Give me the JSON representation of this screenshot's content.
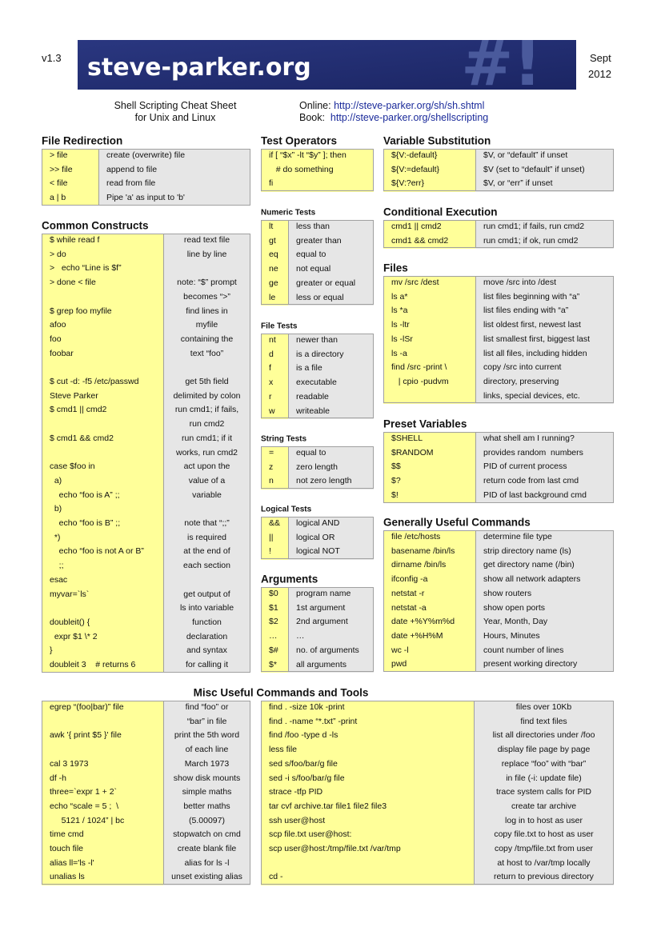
{
  "header": {
    "version": "v1.3",
    "logo": "steve-parker.org",
    "logo_mark": "#!",
    "date": [
      "Sept",
      "2012"
    ]
  },
  "intro": {
    "title": [
      "Shell Scripting Cheat Sheet",
      "for Unix and Linux"
    ],
    "online_label": "Online:",
    "online_url": "http://steve-parker.org/sh/sh.shtml",
    "book_label": "Book:",
    "book_url": "http://steve-parker.org/shellscripting"
  },
  "misc_title": "Misc Useful Commands and Tools",
  "sections": [
    {
      "title": "File Redirection",
      "groups": [
        [
          [
            "> file",
            "create (overwrite) file"
          ],
          [
            ">> file",
            "append to file"
          ],
          [
            "< file",
            "read from file"
          ],
          [
            "a | b",
            "Pipe 'a' as input to 'b'"
          ]
        ]
      ]
    },
    {
      "title": "Common Constructs",
      "groups": [
        [
          [
            "$ while read f",
            "read text file"
          ],
          [
            "> do",
            "line by line"
          ],
          [
            ">   echo “Line is $f”",
            null
          ],
          [
            "> done < file",
            "note: “$” prompt"
          ],
          [
            null,
            "becomes “>”"
          ]
        ],
        [
          [
            "$ grep foo myfile",
            "find lines in"
          ],
          [
            "afoo",
            "myfile"
          ],
          [
            "foo",
            "containing the"
          ],
          [
            "foobar",
            "text “foo”"
          ],
          [
            null,
            null
          ]
        ],
        [
          [
            "$ cut -d: -f5 /etc/passwd",
            "get 5th field"
          ],
          [
            "Steve Parker",
            "delimited by colon"
          ]
        ],
        [
          [
            "$ cmd1 || cmd2",
            "run cmd1; if fails,"
          ],
          [
            null,
            "run cmd2"
          ]
        ],
        [
          [
            "$ cmd1 && cmd2",
            "run cmd1; if it"
          ],
          [
            null,
            "works, run cmd2"
          ]
        ],
        [
          [
            "case $foo in",
            "act upon the"
          ],
          [
            "  a)",
            "value of a"
          ],
          [
            "    echo “foo is A” ;;",
            "variable"
          ],
          [
            "  b)",
            null
          ],
          [
            "    echo “foo is B” ;;",
            "note that “;;”"
          ],
          [
            "  *)",
            "is required"
          ],
          [
            "    echo “foo is not A or B”",
            "at the end of"
          ],
          [
            "    ;;",
            "each section"
          ],
          [
            "esac",
            null
          ]
        ],
        [
          [
            "myvar=`ls`",
            "get output of"
          ],
          [
            null,
            "ls into variable"
          ]
        ],
        [
          [
            "doubleit() {",
            "function"
          ],
          [
            "  expr $1 \\* 2",
            "declaration"
          ],
          [
            "}",
            "and syntax"
          ],
          [
            "doubleit 3    # returns 6",
            "for calling it"
          ]
        ]
      ]
    },
    {
      "title": "Test Operators",
      "groups": [
        [
          [
            "if [ “$x” -lt “$y” ]; then"
          ],
          [
            "   # do something"
          ],
          [
            "fi"
          ]
        ]
      ]
    },
    {
      "title": "Numeric Tests",
      "groups": [
        [
          [
            "lt",
            "less than"
          ],
          [
            "gt",
            "greater than"
          ],
          [
            "eq",
            "equal to"
          ],
          [
            "ne",
            "not equal"
          ],
          [
            "ge",
            "greater or equal"
          ],
          [
            "le",
            "less or equal"
          ]
        ]
      ]
    },
    {
      "title": "File Tests",
      "groups": [
        [
          [
            "nt",
            "newer than"
          ],
          [
            "d",
            "is a directory"
          ],
          [
            "f",
            "is a file"
          ],
          [
            "x",
            "executable"
          ],
          [
            "r",
            "readable"
          ],
          [
            "w",
            "writeable"
          ]
        ]
      ]
    },
    {
      "title": "String Tests",
      "groups": [
        [
          [
            "=",
            "equal to"
          ],
          [
            "z",
            "zero length"
          ],
          [
            "n",
            "not zero length"
          ]
        ]
      ]
    },
    {
      "title": "Logical Tests",
      "groups": [
        [
          [
            "&&",
            "logical AND"
          ],
          [
            "||",
            "logical OR"
          ],
          [
            "!",
            "logical NOT"
          ]
        ]
      ]
    },
    {
      "title": "Arguments",
      "groups": [
        [
          [
            "$0",
            "program name"
          ],
          [
            "$1",
            "1st argument"
          ],
          [
            "$2",
            "2nd argument"
          ],
          [
            "…",
            "…"
          ],
          [
            "$#",
            "no. of arguments"
          ],
          [
            "$*",
            "all arguments"
          ]
        ]
      ]
    },
    {
      "title": "Variable Substitution",
      "groups": [
        [
          [
            "${V:-default}",
            "$V, or “default” if unset"
          ],
          [
            "${V:=default}",
            "$V (set to “default” if unset)"
          ],
          [
            "${V:?err}",
            "$V, or “err” if unset"
          ]
        ]
      ]
    },
    {
      "title": "Conditional Execution",
      "groups": [
        [
          [
            "cmd1 || cmd2",
            "run cmd1; if fails, run cmd2"
          ],
          [
            "cmd1 && cmd2",
            "run cmd1; if ok, run cmd2"
          ]
        ]
      ]
    },
    {
      "title": "Files",
      "groups": [
        [
          [
            "mv /src /dest",
            "move /src into /dest"
          ],
          [
            "ls a*",
            "list files beginning with “a”"
          ],
          [
            "ls *a",
            "list files ending with “a”"
          ],
          [
            "ls -ltr",
            "list oldest first, newest last"
          ],
          [
            "ls -lSr",
            "list smallest first, biggest last"
          ],
          [
            "ls -a",
            "list all files, including hidden"
          ]
        ],
        [
          [
            "find /src -print \\",
            "copy /src into current"
          ],
          [
            "   | cpio -pudvm",
            "directory, preserving"
          ],
          [
            null,
            "links, special devices, etc."
          ]
        ]
      ]
    },
    {
      "title": "Preset Variables",
      "groups": [
        [
          [
            "$SHELL",
            "what shell am I running?"
          ],
          [
            "$RANDOM",
            "provides random  numbers"
          ],
          [
            "$$",
            "PID of current process"
          ],
          [
            "$?",
            "return code from last cmd"
          ],
          [
            "$!",
            "PID of last background cmd"
          ]
        ]
      ]
    },
    {
      "title": "Generally Useful Commands",
      "groups": [
        [
          [
            "file /etc/hosts",
            "determine file type"
          ],
          [
            "basename /bin/ls",
            "strip directory name (ls)"
          ],
          [
            "dirname /bin/ls",
            "get directory name (/bin)"
          ],
          [
            "ifconfig -a",
            "show all network adapters"
          ],
          [
            "netstat -r",
            "show routers"
          ],
          [
            "netstat -a",
            "show open ports"
          ],
          [
            "date +%Y%m%d",
            "Year, Month, Day"
          ],
          [
            "date +%H%M",
            "Hours, Minutes"
          ],
          [
            "wc -l",
            "count number of lines"
          ],
          [
            "pwd",
            "present working directory"
          ]
        ]
      ]
    },
    {
      "groups": [
        [
          [
            "egrep “(foo|bar)” file",
            "find “foo” or"
          ],
          [
            null,
            "“bar” in file"
          ]
        ],
        [
          [
            "awk '{ print $5 }' file",
            "print the 5th word"
          ],
          [
            null,
            "of each line"
          ]
        ],
        [
          [
            "cal 3 1973",
            "March 1973"
          ]
        ],
        [
          [
            "df -h",
            "show disk mounts"
          ]
        ],
        [
          [
            "three=`expr 1 + 2`",
            "simple maths"
          ]
        ],
        [
          [
            "echo “scale = 5 ;  \\",
            "better maths"
          ],
          [
            "     5121 / 1024” | bc",
            "(5.00097)"
          ]
        ],
        [
          [
            "time cmd",
            "stopwatch on cmd"
          ]
        ],
        [
          [
            "touch file",
            "create blank file"
          ]
        ],
        [
          [
            "alias ll='ls -l'",
            "alias for ls -l"
          ]
        ],
        [
          [
            "unalias ls",
            "unset existing alias"
          ]
        ]
      ]
    },
    {
      "groups": [
        [
          [
            "find . -size 10k -print",
            "files over 10Kb"
          ]
        ],
        [
          [
            "find . -name “*.txt” -print",
            "find text files"
          ]
        ],
        [
          [
            "find /foo -type d -ls",
            "list all directories under /foo"
          ]
        ],
        [
          [
            "less file",
            "display file page by page"
          ]
        ],
        [
          [
            "sed s/foo/bar/g file",
            "replace “foo” with “bar”"
          ],
          [
            "sed -i s/foo/bar/g file",
            "in file (-i: update file)"
          ]
        ],
        [
          [
            "strace -tfp PID",
            "trace system calls for PID"
          ]
        ],
        [
          [
            "tar cvf archive.tar file1 file2 file3",
            "create tar archive"
          ]
        ],
        [
          [
            "ssh user@host",
            "log in to host as user"
          ]
        ],
        [
          [
            "scp file.txt user@host:",
            "copy file.txt to host as user"
          ]
        ],
        [
          [
            "scp user@host:/tmp/file.txt /var/tmp",
            "copy /tmp/file.txt from user"
          ],
          [
            null,
            "at host to /var/tmp locally"
          ]
        ],
        [
          [
            "cd -",
            "return to previous directory"
          ]
        ]
      ]
    }
  ]
}
